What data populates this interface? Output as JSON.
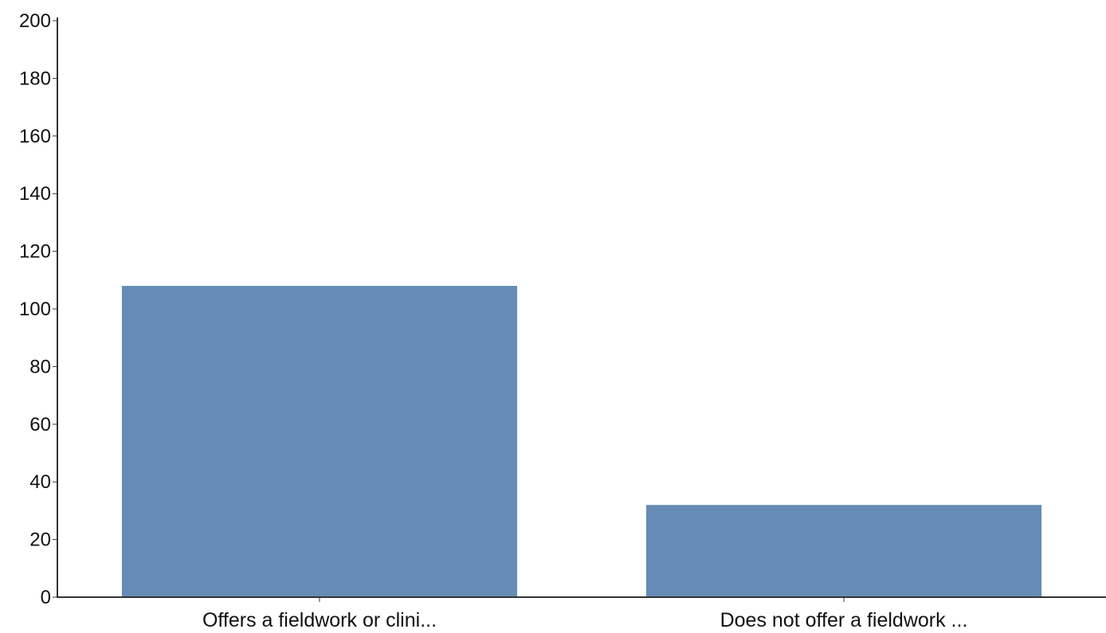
{
  "chart_data": {
    "type": "bar",
    "categories": [
      "Offers a fieldwork or clini...",
      "Does not offer a fieldwork ..."
    ],
    "values": [
      108,
      32
    ],
    "ylim": [
      0,
      200
    ],
    "yticks": [
      0,
      20,
      40,
      60,
      80,
      100,
      120,
      140,
      160,
      180,
      200
    ],
    "title": "",
    "xlabel": "",
    "ylabel": "",
    "grid": false,
    "legend": "none",
    "colors": {
      "bar": "#678cb5",
      "axis": "#333333",
      "text": "#111111",
      "background": "#ffffff"
    }
  }
}
